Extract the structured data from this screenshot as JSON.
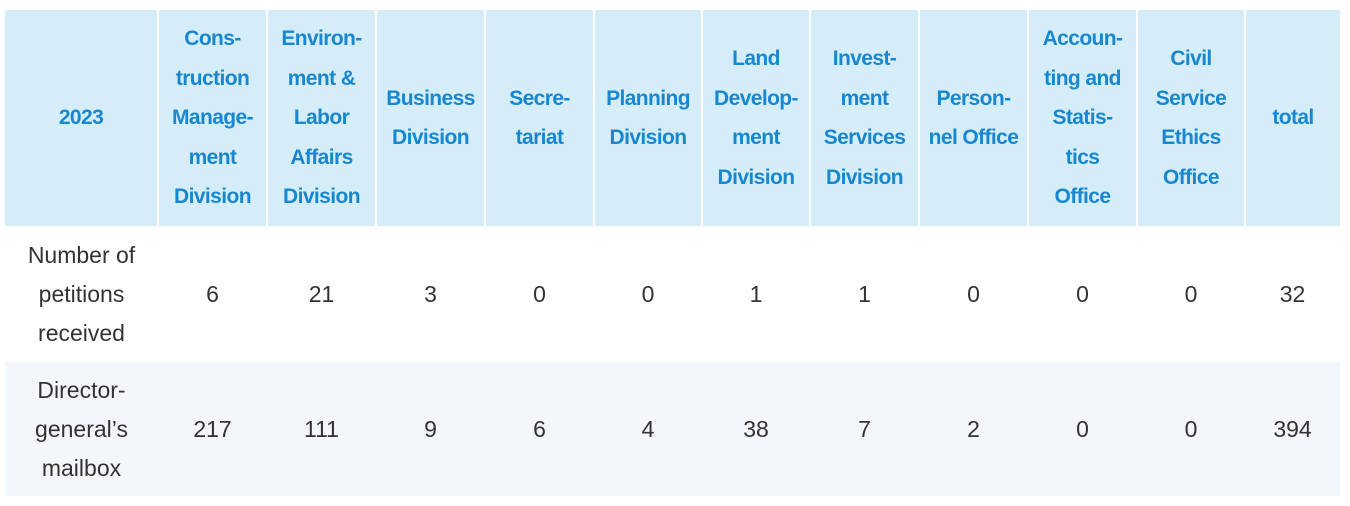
{
  "table": {
    "header": [
      "2023",
      "Cons-\ntruction\nManage-\nment\nDivision",
      "Environ-\nment &\nLabor\nAffairs\nDivision",
      "Business\nDivision",
      "Secre-\ntariat",
      "Planning\nDivision",
      "Land\nDevelop-\nment\nDivision",
      "Invest-\nment\nServices\nDivision",
      "Person-\nnel Office",
      "Accoun-\nting and\nStatis-\ntics\nOffice",
      "Civil\nService\nEthics\nOffice",
      "total"
    ],
    "rows": [
      [
        "Number of\npetitions\nreceived",
        6,
        21,
        3,
        0,
        0,
        1,
        1,
        0,
        0,
        0,
        32
      ],
      [
        "Director-\ngeneral’s\nmailbox",
        217,
        111,
        9,
        6,
        4,
        38,
        7,
        2,
        0,
        0,
        394
      ]
    ]
  }
}
